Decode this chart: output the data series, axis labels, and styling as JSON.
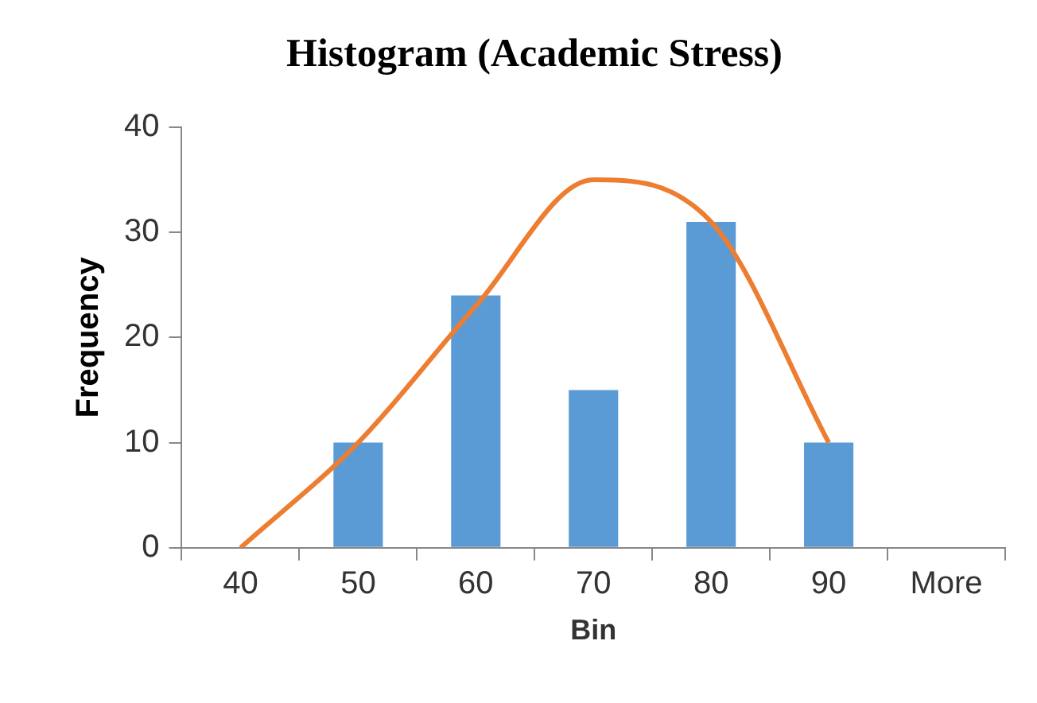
{
  "chart_data": {
    "type": "bar",
    "title": "Histogram (Academic Stress)",
    "xlabel": "Bin",
    "ylabel": "Frequency",
    "categories": [
      "40",
      "50",
      "60",
      "70",
      "80",
      "90",
      "More"
    ],
    "series": [
      {
        "color": "#5b9bd5",
        "values": [
          0,
          10,
          24,
          15,
          31,
          10,
          0
        ]
      },
      {
        "type": "line",
        "color": "#ed7d31",
        "values": [
          0,
          10,
          23,
          35,
          31,
          10,
          null
        ]
      }
    ],
    "ylim": [
      0,
      40
    ],
    "yticks": [
      0,
      10,
      20,
      30,
      40
    ],
    "grid": false,
    "legend": false,
    "marker": "none"
  }
}
